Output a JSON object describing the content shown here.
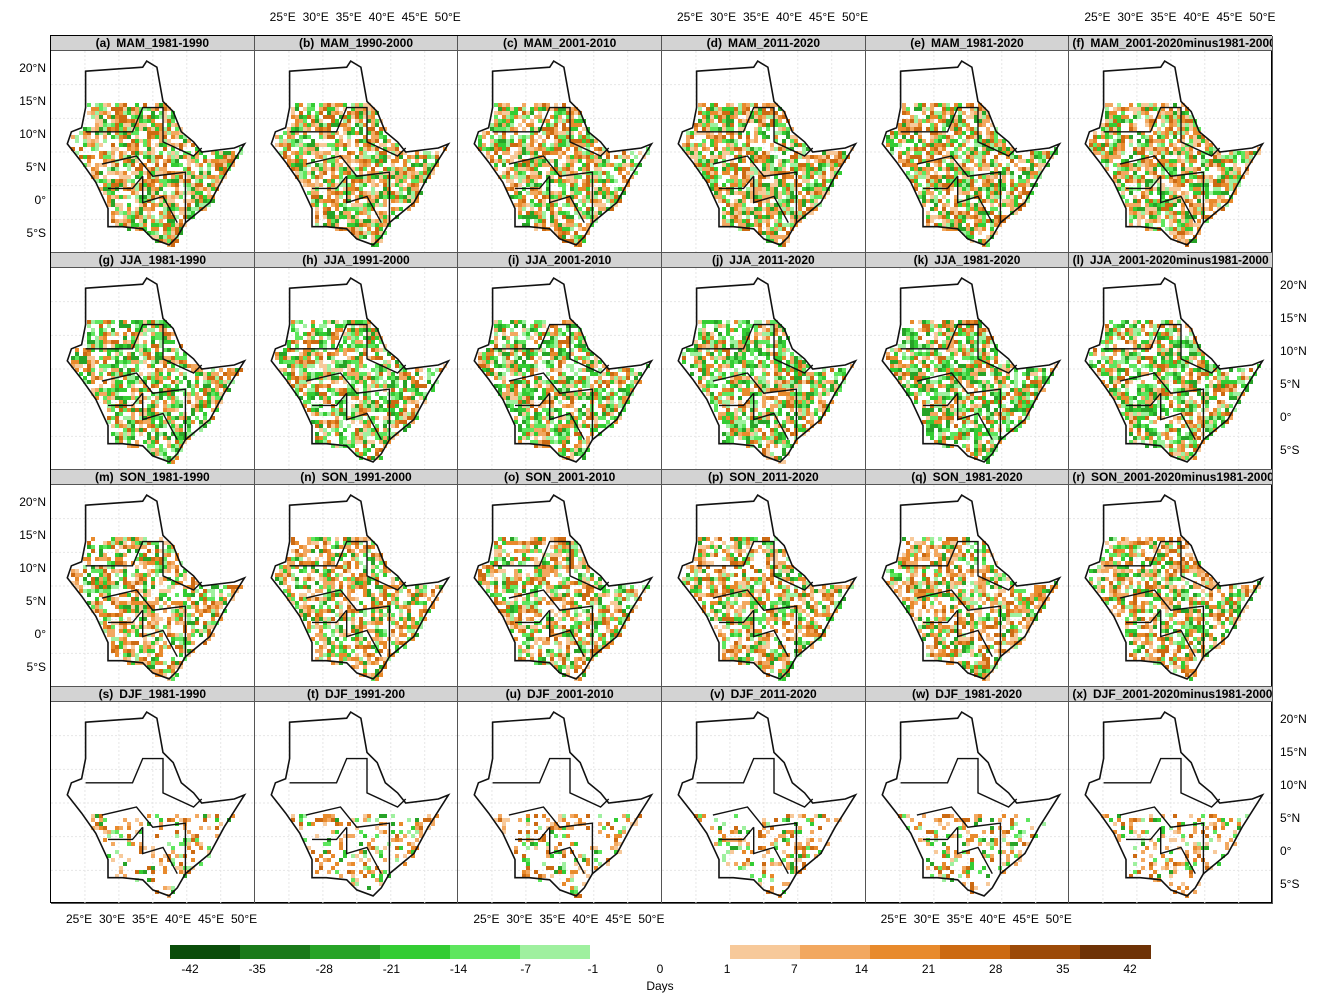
{
  "rows": [
    {
      "season": "MAM",
      "panels": [
        {
          "tag": "(a)",
          "title": "MAM_1981-1990"
        },
        {
          "tag": "(b)",
          "title": "MAM_1990-2000"
        },
        {
          "tag": "(c)",
          "title": "MAM_2001-2010"
        },
        {
          "tag": "(d)",
          "title": "MAM_2011-2020"
        },
        {
          "tag": "(e)",
          "title": "MAM_1981-2020"
        },
        {
          "tag": "(f)",
          "title": "MAM_2001-2020minus1981-2000"
        }
      ]
    },
    {
      "season": "JJA",
      "panels": [
        {
          "tag": "(g)",
          "title": "JJA_1981-1990"
        },
        {
          "tag": "(h)",
          "title": "JJA_1991-2000"
        },
        {
          "tag": "(i)",
          "title": "JJA_2001-2010"
        },
        {
          "tag": "(j)",
          "title": "JJA_2011-2020"
        },
        {
          "tag": "(k)",
          "title": "JJA_1981-2020"
        },
        {
          "tag": "(l)",
          "title": "JJA_2001-2020minus1981-2000"
        }
      ]
    },
    {
      "season": "SON",
      "panels": [
        {
          "tag": "(m)",
          "title": "SON_1981-1990"
        },
        {
          "tag": "(n)",
          "title": "SON_1991-2000"
        },
        {
          "tag": "(o)",
          "title": "SON_2001-2010"
        },
        {
          "tag": "(p)",
          "title": "SON_2011-2020"
        },
        {
          "tag": "(q)",
          "title": "SON_1981-2020"
        },
        {
          "tag": "(r)",
          "title": "SON_2001-2020minus1981-2000"
        }
      ]
    },
    {
      "season": "DJF",
      "panels": [
        {
          "tag": "(s)",
          "title": "DJF_1981-1990"
        },
        {
          "tag": "(t)",
          "title": "DJF_1991-200"
        },
        {
          "tag": "(u)",
          "title": "DJF_2001-2010"
        },
        {
          "tag": "(v)",
          "title": "DJF_2011-2020"
        },
        {
          "tag": "(w)",
          "title": "DJF_1981-2020"
        },
        {
          "tag": "(x)",
          "title": "DJF_2001-2020minus1981-2000"
        }
      ]
    }
  ],
  "lat_ticks": [
    "20°N",
    "15°N",
    "10°N",
    "5°N",
    "0°",
    "5°S"
  ],
  "lon_ticks": [
    "25°E",
    "30°E",
    "35°E",
    "40°E",
    "45°E",
    "50°E"
  ],
  "legend": {
    "title": "Days",
    "labels": [
      "-42",
      "-35",
      "-28",
      "-21",
      "-14",
      "-7",
      "-1",
      "0",
      "1",
      "7",
      "14",
      "21",
      "28",
      "35",
      "42"
    ],
    "colors": [
      "#0a4d0a",
      "#1a7a1a",
      "#27a327",
      "#33cc33",
      "#5ee65e",
      "#9ff09f",
      "#ffffff",
      "#ffffff",
      "#f7c99a",
      "#f2a860",
      "#e88a2c",
      "#cc6a12",
      "#9c4a08",
      "#6e3206"
    ]
  },
  "patterns": {
    "MAM": {
      "orange": 0.45,
      "green": 0.3
    },
    "JJA": {
      "orange": 0.3,
      "green": 0.4
    },
    "SON": {
      "orange": 0.4,
      "green": 0.25
    },
    "DJF": {
      "orange": 0.2,
      "green": 0.1
    }
  }
}
